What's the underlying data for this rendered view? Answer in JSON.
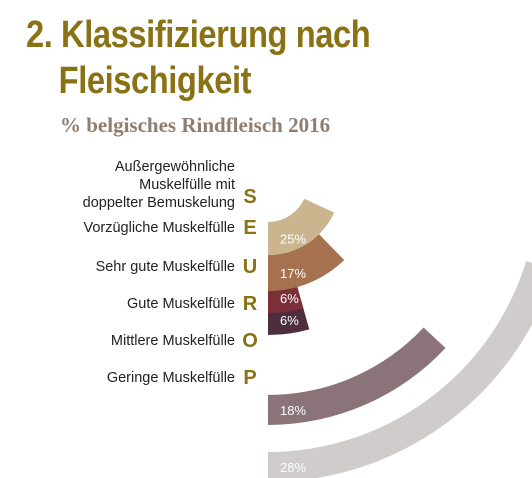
{
  "header": {
    "title_line1": "2. Klassifizierung nach",
    "title_line2": "Fleischigkeit",
    "subtitle": "% belgisches Rindfleisch 2016"
  },
  "categories": [
    {
      "label": "Außergewöhnliche Muskelfülle mit doppelter Bemuskelung",
      "label_lines": [
        "Außergewöhnliche",
        "Muskelfülle mit",
        "doppelter Bemuskelung"
      ],
      "letter": "S",
      "value_label": "28%"
    },
    {
      "label": "Vorzügliche Muskelfülle",
      "label_lines": [
        "Vorzügliche Muskelfülle"
      ],
      "letter": "E",
      "value_label": "18%"
    },
    {
      "label": "Sehr gute Muskelfülle",
      "label_lines": [
        "Sehr gute Muskelfülle"
      ],
      "letter": "U",
      "value_label": "6%"
    },
    {
      "label": "Gute Muskelfülle",
      "label_lines": [
        "Gute Muskelfülle"
      ],
      "letter": "R",
      "value_label": "6%"
    },
    {
      "label": "Mittlere Muskelfülle",
      "label_lines": [
        "Mittlere Muskelfülle"
      ],
      "letter": "O",
      "value_label": "17%"
    },
    {
      "label": "Geringe Muskelfülle",
      "label_lines": [
        "Geringe Muskelfülle"
      ],
      "letter": "P",
      "value_label": "25%"
    }
  ],
  "chart_data": {
    "type": "radial-bar",
    "title": "2. Klassifizierung nach Fleischigkeit",
    "subtitle": "% belgisches Rindfleisch 2016",
    "categories": [
      "S",
      "E",
      "U",
      "R",
      "O",
      "P"
    ],
    "values": [
      28,
      18,
      6,
      6,
      17,
      25
    ],
    "unit": "%",
    "colors": [
      "#cfcccb",
      "#8a7479",
      "#4e2d3e",
      "#7b3039",
      "#a6714f",
      "#cbb58e"
    ],
    "letter_color": "#8a7114",
    "title_color": "#8a7114",
    "subtitle_color": "#8f7d6f"
  }
}
